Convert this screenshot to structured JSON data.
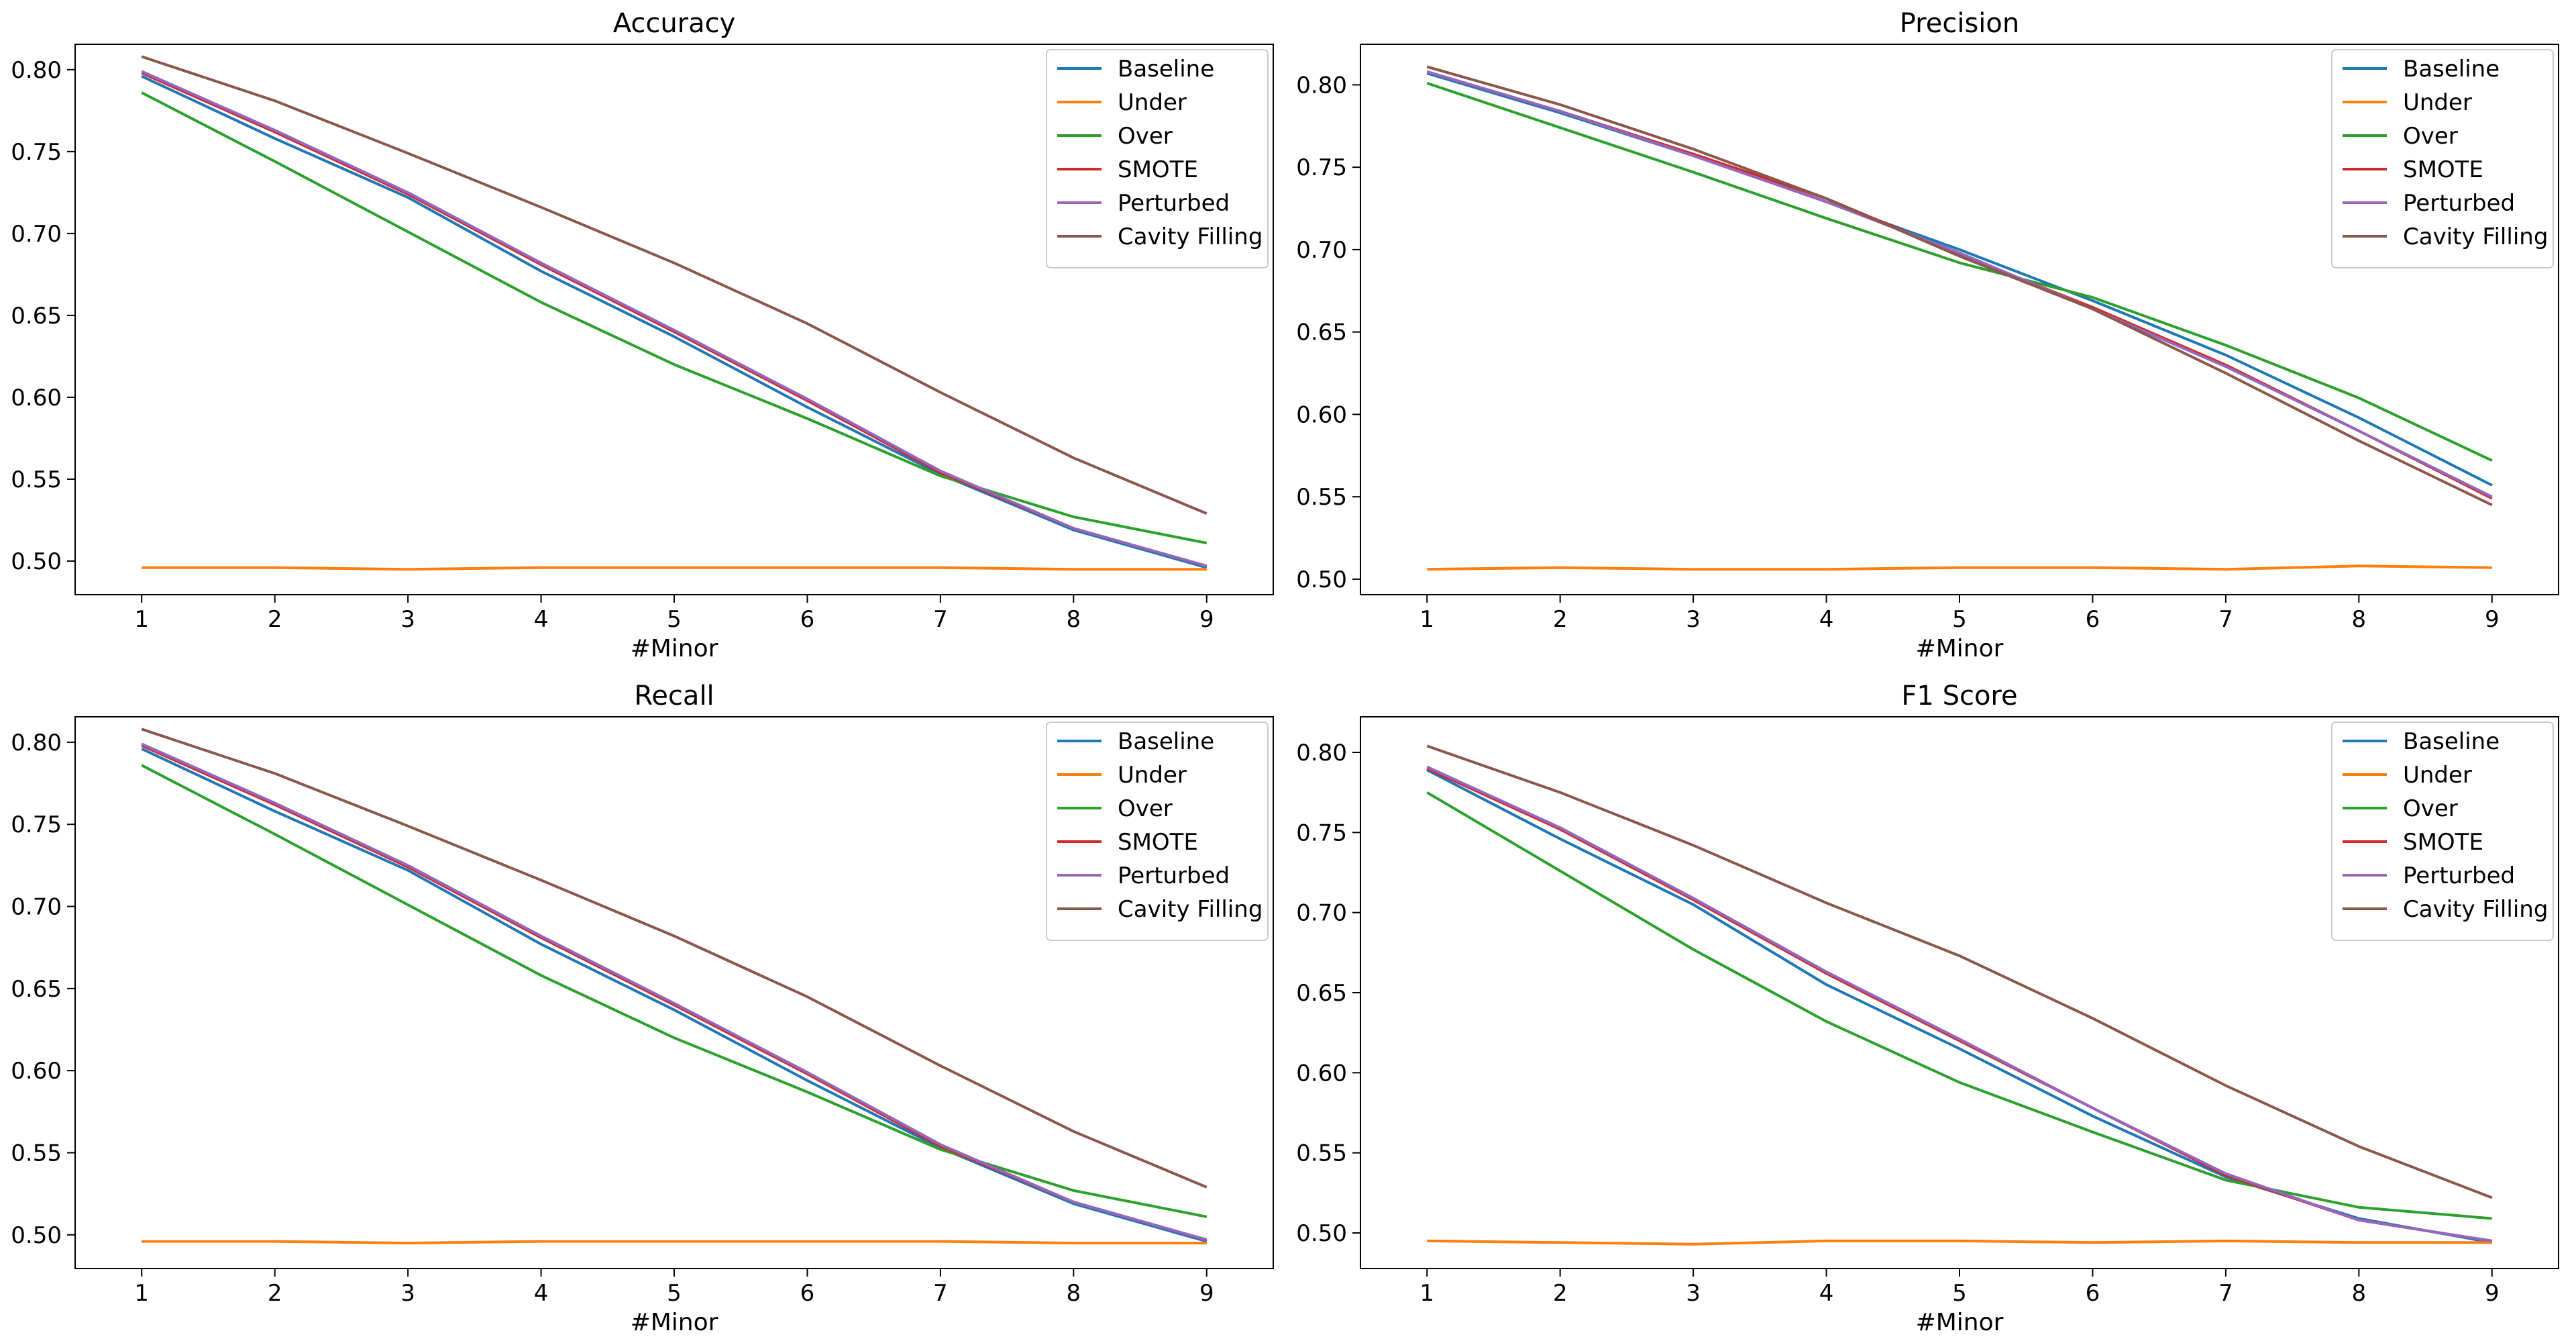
{
  "figure": {
    "colors": {
      "Baseline": "#1f77b4",
      "Under": "#ff7f0e",
      "Over": "#2ca02c",
      "SMOTE": "#d62728",
      "Perturbed": "#9467bd",
      "Cavity Filling": "#8c564b"
    }
  },
  "chart_data": [
    {
      "type": "line",
      "title": "Accuracy",
      "xlabel": "#Minor",
      "ylabel": "",
      "x": [
        1,
        2,
        3,
        4,
        5,
        6,
        7,
        8,
        9
      ],
      "xticks": [
        "1",
        "2",
        "3",
        "4",
        "5",
        "6",
        "7",
        "8",
        "9"
      ],
      "yticks": [
        "0.50",
        "0.55",
        "0.60",
        "0.65",
        "0.70",
        "0.75",
        "0.80"
      ],
      "ytick_values": [
        0.5,
        0.55,
        0.6,
        0.65,
        0.7,
        0.75,
        0.8
      ],
      "xlim": [
        0.5,
        9.5
      ],
      "ylim": [
        0.4795,
        0.8155
      ],
      "legend_position": "top-right",
      "series": [
        {
          "name": "Baseline",
          "values": [
            0.796,
            0.758,
            0.722,
            0.677,
            0.637,
            0.594,
            0.553,
            0.519,
            0.496
          ]
        },
        {
          "name": "Under",
          "values": [
            0.496,
            0.496,
            0.495,
            0.496,
            0.496,
            0.496,
            0.496,
            0.495,
            0.495
          ]
        },
        {
          "name": "Over",
          "values": [
            0.786,
            0.744,
            0.701,
            0.658,
            0.62,
            0.587,
            0.552,
            0.527,
            0.511
          ]
        },
        {
          "name": "SMOTE",
          "values": [
            0.798,
            0.762,
            0.724,
            0.681,
            0.64,
            0.598,
            0.554,
            0.52,
            0.497
          ]
        },
        {
          "name": "Perturbed",
          "values": [
            0.799,
            0.763,
            0.725,
            0.682,
            0.641,
            0.599,
            0.555,
            0.52,
            0.497
          ]
        },
        {
          "name": "Cavity Filling",
          "values": [
            0.808,
            0.781,
            0.749,
            0.716,
            0.682,
            0.645,
            0.603,
            0.563,
            0.529
          ]
        }
      ]
    },
    {
      "type": "line",
      "title": "Precision",
      "xlabel": "#Minor",
      "ylabel": "",
      "x": [
        1,
        2,
        3,
        4,
        5,
        6,
        7,
        8,
        9
      ],
      "xticks": [
        "1",
        "2",
        "3",
        "4",
        "5",
        "6",
        "7",
        "8",
        "9"
      ],
      "yticks": [
        "0.50",
        "0.55",
        "0.60",
        "0.65",
        "0.70",
        "0.75",
        "0.80"
      ],
      "ytick_values": [
        0.5,
        0.55,
        0.6,
        0.65,
        0.7,
        0.75,
        0.8
      ],
      "xlim": [
        0.5,
        9.5
      ],
      "ylim": [
        0.4906,
        0.8246
      ],
      "legend_position": "top-right",
      "series": [
        {
          "name": "Baseline",
          "values": [
            0.807,
            0.783,
            0.757,
            0.729,
            0.7,
            0.669,
            0.636,
            0.598,
            0.557
          ]
        },
        {
          "name": "Under",
          "values": [
            0.506,
            0.507,
            0.506,
            0.506,
            0.507,
            0.507,
            0.506,
            0.508,
            0.507
          ]
        },
        {
          "name": "Over",
          "values": [
            0.801,
            0.774,
            0.747,
            0.719,
            0.692,
            0.671,
            0.642,
            0.61,
            0.572
          ]
        },
        {
          "name": "SMOTE",
          "values": [
            0.808,
            0.784,
            0.758,
            0.731,
            0.697,
            0.665,
            0.63,
            0.59,
            0.549
          ]
        },
        {
          "name": "Perturbed",
          "values": [
            0.808,
            0.784,
            0.757,
            0.729,
            0.698,
            0.664,
            0.629,
            0.59,
            0.55
          ]
        },
        {
          "name": "Cavity Filling",
          "values": [
            0.811,
            0.788,
            0.761,
            0.731,
            0.696,
            0.664,
            0.625,
            0.584,
            0.545
          ]
        }
      ]
    },
    {
      "type": "line",
      "title": "Recall",
      "xlabel": "#Minor",
      "ylabel": "",
      "x": [
        1,
        2,
        3,
        4,
        5,
        6,
        7,
        8,
        9
      ],
      "xticks": [
        "1",
        "2",
        "3",
        "4",
        "5",
        "6",
        "7",
        "8",
        "9"
      ],
      "yticks": [
        "0.50",
        "0.55",
        "0.60",
        "0.65",
        "0.70",
        "0.75",
        "0.80"
      ],
      "ytick_values": [
        0.5,
        0.55,
        0.6,
        0.65,
        0.7,
        0.75,
        0.8
      ],
      "xlim": [
        0.5,
        9.5
      ],
      "ylim": [
        0.4795,
        0.8155
      ],
      "legend_position": "top-right",
      "series": [
        {
          "name": "Baseline",
          "values": [
            0.796,
            0.758,
            0.722,
            0.677,
            0.637,
            0.594,
            0.553,
            0.519,
            0.496
          ]
        },
        {
          "name": "Under",
          "values": [
            0.496,
            0.496,
            0.495,
            0.496,
            0.496,
            0.496,
            0.496,
            0.495,
            0.495
          ]
        },
        {
          "name": "Over",
          "values": [
            0.786,
            0.744,
            0.701,
            0.658,
            0.62,
            0.587,
            0.552,
            0.527,
            0.511
          ]
        },
        {
          "name": "SMOTE",
          "values": [
            0.798,
            0.762,
            0.724,
            0.681,
            0.64,
            0.598,
            0.554,
            0.52,
            0.497
          ]
        },
        {
          "name": "Perturbed",
          "values": [
            0.799,
            0.763,
            0.725,
            0.682,
            0.641,
            0.599,
            0.555,
            0.52,
            0.497
          ]
        },
        {
          "name": "Cavity Filling",
          "values": [
            0.808,
            0.781,
            0.749,
            0.716,
            0.682,
            0.645,
            0.603,
            0.563,
            0.529
          ]
        }
      ]
    },
    {
      "type": "line",
      "title": "F1 Score",
      "xlabel": "#Minor",
      "ylabel": "",
      "x": [
        1,
        2,
        3,
        4,
        5,
        6,
        7,
        8,
        9
      ],
      "xticks": [
        "1",
        "2",
        "3",
        "4",
        "5",
        "6",
        "7",
        "8",
        "9"
      ],
      "yticks": [
        "0.50",
        "0.55",
        "0.60",
        "0.65",
        "0.70",
        "0.75",
        "0.80"
      ],
      "ytick_values": [
        0.5,
        0.55,
        0.6,
        0.65,
        0.7,
        0.75,
        0.8
      ],
      "xlim": [
        0.5,
        9.5
      ],
      "ylim": [
        0.4778,
        0.8222
      ],
      "legend_position": "top-right",
      "series": [
        {
          "name": "Baseline",
          "values": [
            0.789,
            0.746,
            0.705,
            0.655,
            0.615,
            0.573,
            0.535,
            0.509,
            0.494
          ]
        },
        {
          "name": "Under",
          "values": [
            0.495,
            0.494,
            0.493,
            0.495,
            0.495,
            0.494,
            0.495,
            0.494,
            0.494
          ]
        },
        {
          "name": "Over",
          "values": [
            0.775,
            0.726,
            0.677,
            0.632,
            0.594,
            0.563,
            0.533,
            0.516,
            0.509
          ]
        },
        {
          "name": "SMOTE",
          "values": [
            0.79,
            0.752,
            0.708,
            0.662,
            0.62,
            0.578,
            0.536,
            0.508,
            0.495
          ]
        },
        {
          "name": "Perturbed",
          "values": [
            0.791,
            0.753,
            0.709,
            0.663,
            0.621,
            0.578,
            0.537,
            0.508,
            0.495
          ]
        },
        {
          "name": "Cavity Filling",
          "values": [
            0.804,
            0.775,
            0.742,
            0.706,
            0.673,
            0.634,
            0.592,
            0.554,
            0.522
          ]
        }
      ]
    }
  ]
}
